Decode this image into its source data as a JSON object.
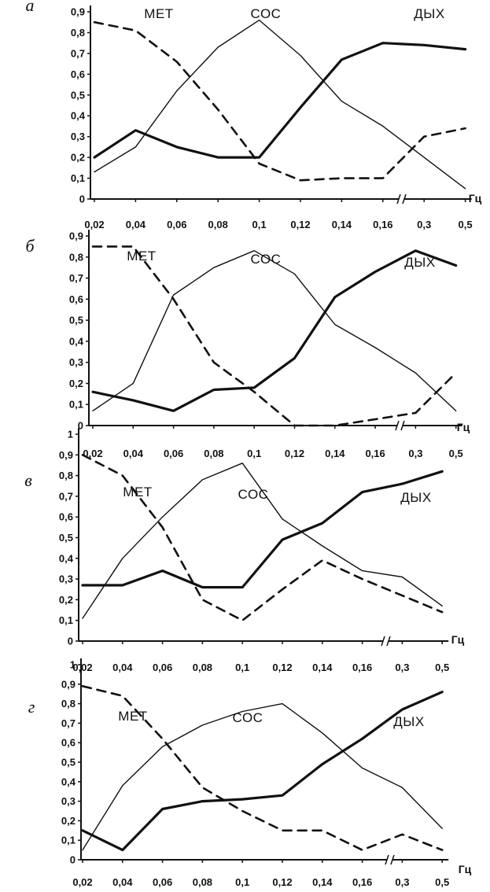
{
  "colors": {
    "ink": "#111111",
    "background": "#ffffff"
  },
  "chart_data": [
    {
      "type": "line",
      "panel": "а",
      "x": [
        "0,02",
        "0,04",
        "0,06",
        "0,08",
        "0,1",
        "0,12",
        "0,14",
        "0,16",
        "0,3",
        "0,5"
      ],
      "x_unit": "Гц",
      "y_ticks": [
        "0",
        "0,1",
        "0,2",
        "0,3",
        "0,4",
        "0,5",
        "0,6",
        "0,7",
        "0,8",
        "0,9"
      ],
      "ylim": [
        0,
        0.9
      ],
      "axis_break": "between 0,16 and 0,3",
      "series": [
        {
          "name": "МЕТ",
          "style": "dashed",
          "values": [
            0.85,
            0.81,
            0.66,
            0.43,
            0.17,
            0.09,
            0.1,
            0.1,
            0.3,
            0.34
          ]
        },
        {
          "name": "СОС",
          "style": "thin",
          "values": [
            0.13,
            0.25,
            0.52,
            0.73,
            0.86,
            0.69,
            0.47,
            0.35,
            0.2,
            0.05
          ]
        },
        {
          "name": "ДЫХ",
          "style": "thick",
          "values": [
            0.2,
            0.33,
            0.25,
            0.2,
            0.2,
            0.44,
            0.67,
            0.75,
            0.74,
            0.72
          ]
        }
      ]
    },
    {
      "type": "line",
      "panel": "б",
      "x": [
        "0,02",
        "0,04",
        "0,06",
        "0,08",
        "0,1",
        "0,12",
        "0,14",
        "0,16",
        "0,3",
        "0,5"
      ],
      "x_unit": "Гц",
      "y_ticks": [
        "0",
        "0,1",
        "0,2",
        "0,3",
        "0,4",
        "0,5",
        "0,6",
        "0,7",
        "0,8",
        "0,9"
      ],
      "ylim": [
        0,
        0.9
      ],
      "axis_break": "between 0,16 and 0,3",
      "series": [
        {
          "name": "МЕТ",
          "style": "dashed",
          "values": [
            0.85,
            0.85,
            0.6,
            0.3,
            0.16,
            0.0,
            0.0,
            0.03,
            0.06,
            0.25
          ]
        },
        {
          "name": "СОС",
          "style": "thin",
          "values": [
            0.07,
            0.2,
            0.62,
            0.75,
            0.83,
            0.72,
            0.48,
            0.37,
            0.25,
            0.07
          ]
        },
        {
          "name": "ДЫХ",
          "style": "thick",
          "values": [
            0.16,
            0.12,
            0.07,
            0.17,
            0.18,
            0.32,
            0.61,
            0.73,
            0.83,
            0.76
          ]
        }
      ]
    },
    {
      "type": "line",
      "panel": "в",
      "x": [
        "0,02",
        "0,04",
        "0,06",
        "0,08",
        "0,1",
        "0,12",
        "0,14",
        "0,16",
        "0,3",
        "0,5"
      ],
      "x_unit": "Гц",
      "y_ticks": [
        "0",
        "0,1",
        "0,2",
        "0,3",
        "0,4",
        "0,5",
        "0,6",
        "0,7",
        "0,8",
        "0,9",
        "1"
      ],
      "ylim": [
        0,
        1
      ],
      "axis_break": "between 0,16 and 0,3",
      "series": [
        {
          "name": "МЕТ",
          "style": "dashed",
          "values": [
            0.9,
            0.8,
            0.55,
            0.2,
            0.1,
            0.25,
            0.39,
            0.3,
            0.22,
            0.14
          ]
        },
        {
          "name": "СОС",
          "style": "thin",
          "values": [
            0.11,
            0.4,
            0.6,
            0.78,
            0.86,
            0.59,
            0.46,
            0.34,
            0.31,
            0.17
          ]
        },
        {
          "name": "ДЫХ",
          "style": "thick",
          "values": [
            0.27,
            0.27,
            0.34,
            0.26,
            0.26,
            0.49,
            0.57,
            0.72,
            0.76,
            0.82
          ]
        }
      ]
    },
    {
      "type": "line",
      "panel": "г",
      "x": [
        "0,02",
        "0,04",
        "0,06",
        "0,08",
        "0,1",
        "0,12",
        "0,14",
        "0,16",
        "0,3",
        "0,5"
      ],
      "x_unit": "Гц",
      "y_ticks": [
        "0",
        "0,1",
        "0,2",
        "0,3",
        "0,4",
        "0,5",
        "0,6",
        "0,7",
        "0,8",
        "0,9",
        "1"
      ],
      "ylim": [
        0,
        1
      ],
      "axis_break": "between 0,16 and 0,3",
      "series": [
        {
          "name": "МЕТ",
          "style": "dashed",
          "values": [
            0.89,
            0.84,
            0.62,
            0.37,
            0.25,
            0.15,
            0.15,
            0.05,
            0.13,
            0.05
          ]
        },
        {
          "name": "СОС",
          "style": "thin",
          "values": [
            0.05,
            0.38,
            0.58,
            0.69,
            0.76,
            0.8,
            0.65,
            0.47,
            0.37,
            0.16
          ]
        },
        {
          "name": "ДЫХ",
          "style": "thick",
          "values": [
            0.15,
            0.05,
            0.26,
            0.3,
            0.31,
            0.33,
            0.49,
            0.62,
            0.77,
            0.86
          ]
        }
      ]
    }
  ]
}
